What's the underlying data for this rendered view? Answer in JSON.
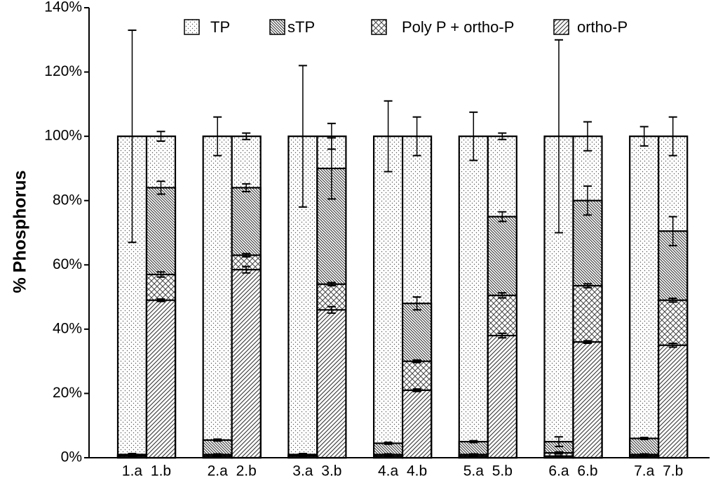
{
  "chart_data": {
    "type": "bar",
    "y_label": "% Phosphorus",
    "categories": [
      "1.a",
      "1.b",
      "2.a",
      "2.b",
      "3.a",
      "3.b",
      "4.a",
      "4.b",
      "5.a",
      "5.b",
      "6.a",
      "6.b",
      "7.a",
      "7.b"
    ],
    "ylim": [
      0,
      140
    ],
    "yticks": [
      {
        "value": 0,
        "label": "0%"
      },
      {
        "value": 20,
        "label": "20%"
      },
      {
        "value": 40,
        "label": "40%"
      },
      {
        "value": 60,
        "label": "60%"
      },
      {
        "value": 80,
        "label": "80%"
      },
      {
        "value": 100,
        "label": "100%"
      },
      {
        "value": 120,
        "label": "120%"
      },
      {
        "value": 140,
        "label": "140%"
      }
    ],
    "color": "#000000",
    "series": [
      {
        "name": "TP",
        "pattern": "dots",
        "values": [
          100,
          100,
          100,
          100,
          100,
          100,
          100,
          100,
          100,
          100,
          100,
          100,
          100,
          100
        ],
        "errors": [
          33,
          1.5,
          6,
          1,
          22,
          4,
          11,
          6,
          7.5,
          1,
          30,
          4.5,
          3,
          6
        ]
      },
      {
        "name": "sTP",
        "pattern": "dense-hatch",
        "values": [
          1,
          84,
          5.5,
          84,
          1,
          90,
          4.5,
          48,
          5,
          75,
          5,
          80,
          6,
          70.5
        ],
        "errors": [
          0.3,
          2,
          0.3,
          1.2,
          0.3,
          9.5,
          0.3,
          2,
          0.3,
          1.5,
          1.5,
          4.5,
          0.3,
          4.5
        ]
      },
      {
        "name": "Poly P + ortho-P",
        "pattern": "cross",
        "values": [
          0.8,
          57,
          1,
          63,
          0.8,
          54,
          1,
          30,
          1,
          50.5,
          1.5,
          53.5,
          1,
          49
        ],
        "errors": [
          0.2,
          0.8,
          0.2,
          0.5,
          0.2,
          0.5,
          0.2,
          0.4,
          0.2,
          0.8,
          0.3,
          0.6,
          0.2,
          0.6
        ]
      },
      {
        "name": "ortho-P",
        "pattern": "slash",
        "values": [
          0.5,
          49,
          0.5,
          58.5,
          0.5,
          46,
          0.5,
          21,
          0.5,
          38,
          0.5,
          36,
          0.5,
          35
        ],
        "errors": [
          0.1,
          0.4,
          0.1,
          1,
          0.1,
          1,
          0.1,
          0.4,
          0.1,
          0.7,
          0.1,
          0.4,
          0.1,
          0.6
        ]
      }
    ]
  }
}
